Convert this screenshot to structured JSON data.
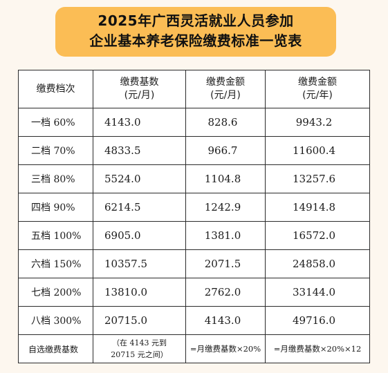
{
  "title": {
    "line1": "2025年广西灵活就业人员参加",
    "line2": "企业基本养老保险缴费标准一览表"
  },
  "table": {
    "headers": [
      {
        "line1": "缴费档次",
        "line2": ""
      },
      {
        "line1": "缴费基数",
        "line2": "(元/月)"
      },
      {
        "line1": "缴费金额",
        "line2": "(元/月)"
      },
      {
        "line1": "缴费金额",
        "line2": "(元/年)"
      }
    ],
    "rows": [
      {
        "tier": "一档 60%",
        "base": "4143.0",
        "monthly": "828.6",
        "yearly": "9943.2"
      },
      {
        "tier": "二档 70%",
        "base": "4833.5",
        "monthly": "966.7",
        "yearly": "11600.4"
      },
      {
        "tier": "三档 80%",
        "base": "5524.0",
        "monthly": "1104.8",
        "yearly": "13257.6"
      },
      {
        "tier": "四档 90%",
        "base": "6214.5",
        "monthly": "1242.9",
        "yearly": "14914.8"
      },
      {
        "tier": "五档 100%",
        "base": "6905.0",
        "monthly": "1381.0",
        "yearly": "16572.0"
      },
      {
        "tier": "六档 150%",
        "base": "10357.5",
        "monthly": "2071.5",
        "yearly": "24858.0"
      },
      {
        "tier": "七档 200%",
        "base": "13810.0",
        "monthly": "2762.0",
        "yearly": "33144.0"
      },
      {
        "tier": "八档 300%",
        "base": "20715.0",
        "monthly": "4143.0",
        "yearly": "49716.0"
      }
    ],
    "custom_row": {
      "tier": "自选缴费基数",
      "range_line1": "（在 4143 元到",
      "range_line2": "20715 元之间）",
      "monthly": "=月缴费基数×20%",
      "yearly": "=月缴费基数×20%×12"
    }
  },
  "colors": {
    "banner": "#fbbd55",
    "background": "#fdf7ef",
    "border": "#2a2a2a"
  }
}
